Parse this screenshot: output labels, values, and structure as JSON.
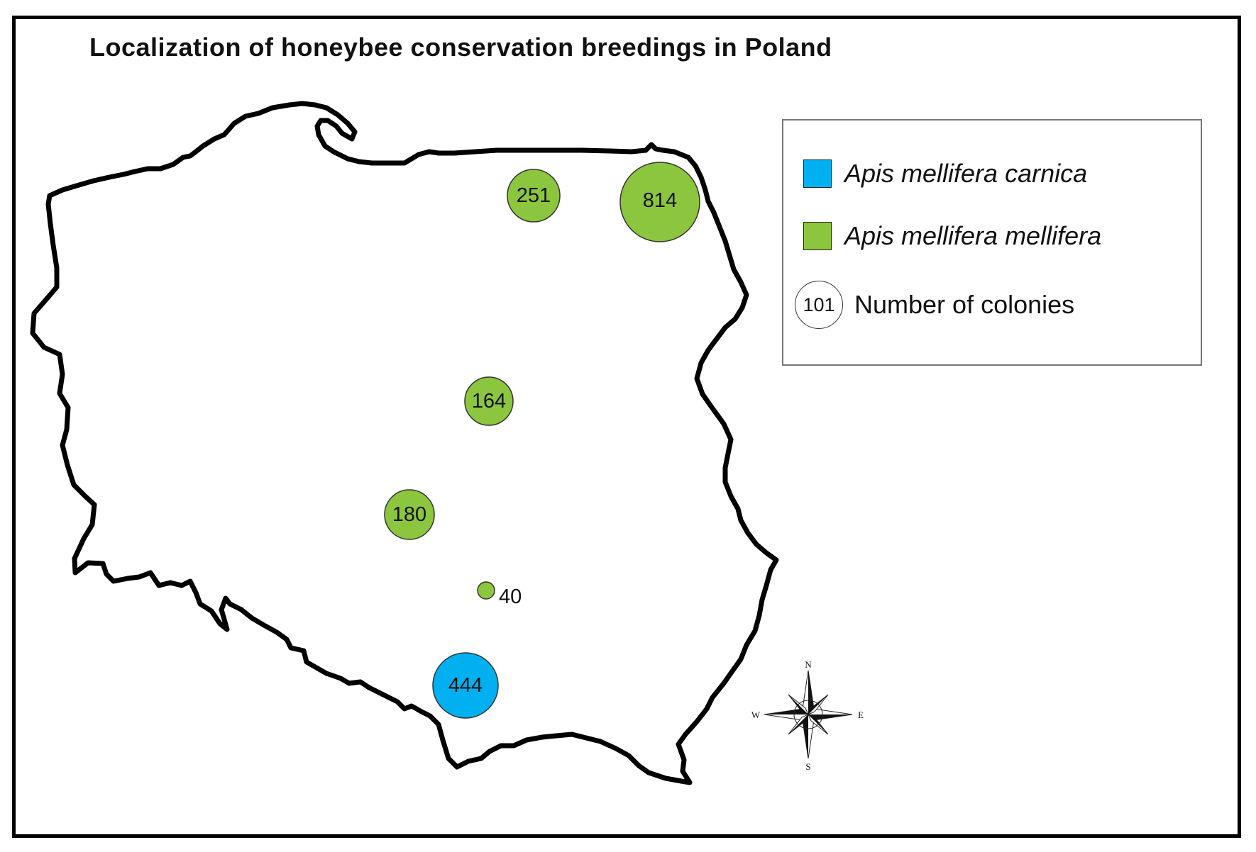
{
  "title": "Localization of honeybee conservation breedings in Poland",
  "colors": {
    "carnica": "#00b0f0",
    "mellifera": "#8cc63e",
    "outline": "#000000"
  },
  "legend": {
    "carnica_label": "Apis mellifera carnica",
    "mellifera_label": "Apis mellifera mellifera",
    "count_example": "101",
    "count_label": "Number of colonies"
  },
  "breedings": [
    {
      "id": "north-1",
      "subspecies": "mellifera",
      "colonies": 251
    },
    {
      "id": "north-east",
      "subspecies": "mellifera",
      "colonies": 814
    },
    {
      "id": "central",
      "subspecies": "mellifera",
      "colonies": 164
    },
    {
      "id": "central-west",
      "subspecies": "mellifera",
      "colonies": 180
    },
    {
      "id": "south-central",
      "subspecies": "mellifera",
      "colonies": 40
    },
    {
      "id": "south",
      "subspecies": "carnica",
      "colonies": 444
    }
  ],
  "compass": {
    "n": "N",
    "s": "S",
    "e": "E",
    "w": "W"
  }
}
